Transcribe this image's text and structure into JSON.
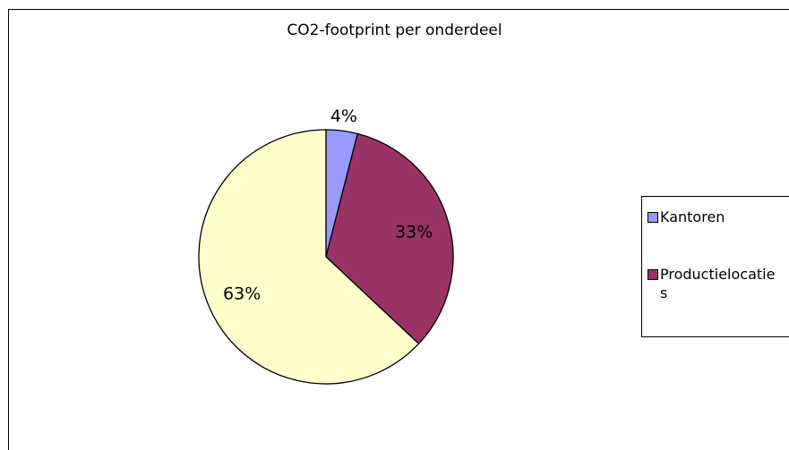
{
  "chart_data": {
    "type": "pie",
    "title": "CO2-footprint per onderdeel",
    "categories": [
      "Kantoren",
      "Productielocaties",
      ""
    ],
    "values": [
      4,
      33,
      63
    ],
    "labels": [
      "4%",
      "33%",
      "63%"
    ],
    "colors": [
      "#9999ff",
      "#993366",
      "#ffffcc"
    ],
    "legend": {
      "placement": "right",
      "entries": [
        {
          "label": "Kantoren",
          "color": "#9999ff"
        },
        {
          "label": "Productielocaties",
          "color": "#993366"
        }
      ]
    }
  }
}
